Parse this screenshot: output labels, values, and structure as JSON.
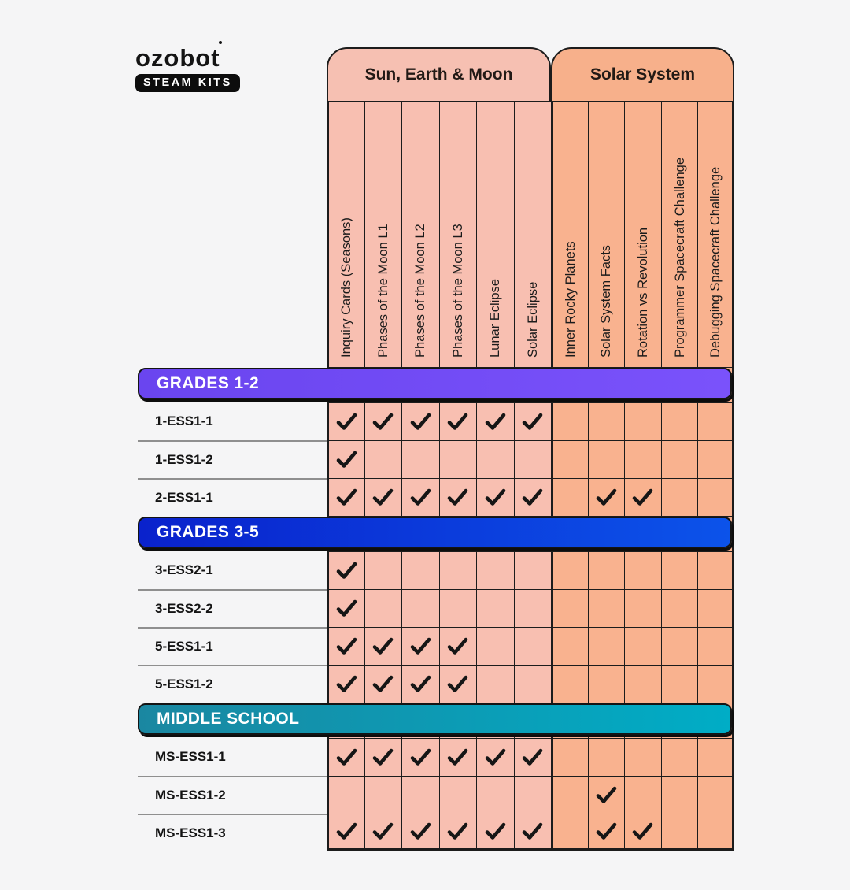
{
  "logo": {
    "brand": "ozobot",
    "badge": "STEAM KITS"
  },
  "colors": {
    "page_bg": "#f5f5f6",
    "pink": "#f8bfb1",
    "orange": "#f9b28f",
    "grid_line": "#1c1c1c",
    "label_separator": "#8f8f8f",
    "check": "#161616",
    "banner_text": "#ffffff"
  },
  "chart_data": {
    "type": "table",
    "column_groups": [
      {
        "label": "Sun, Earth & Moon",
        "header_bg": "#f6c0b2",
        "columns": [
          "Inquiry Cards (Seasons)",
          "Phases of the Moon L1",
          "Phases of the Moon L2",
          "Phases of the Moon L3",
          "Lunar Eclipse",
          "Solar Eclipse"
        ]
      },
      {
        "label": "Solar System",
        "header_bg": "#f7b08b",
        "columns": [
          "Inner Rocky Planets",
          "Solar System Facts",
          "Rotation vs Revolution",
          "Programmer Spacecraft Challenge",
          "Debugging Spacecraft Challenge"
        ]
      }
    ],
    "sections": [
      {
        "banner": "GRADES 1-2",
        "gradient": [
          "#6a45ef",
          "#7a52fb"
        ],
        "rows": [
          {
            "label": "1-ESS1-1",
            "checks": [
              1,
              1,
              1,
              1,
              1,
              1,
              0,
              0,
              0,
              0,
              0
            ]
          },
          {
            "label": "1-ESS1-2",
            "checks": [
              1,
              0,
              0,
              0,
              0,
              0,
              0,
              0,
              0,
              0,
              0
            ]
          },
          {
            "label": "2-ESS1-1",
            "checks": [
              1,
              1,
              1,
              1,
              1,
              1,
              0,
              1,
              1,
              0,
              0
            ]
          }
        ]
      },
      {
        "banner": "GRADES 3-5",
        "gradient": [
          "#0a22cc",
          "#0c53ea"
        ],
        "rows": [
          {
            "label": "3-ESS2-1",
            "checks": [
              1,
              0,
              0,
              0,
              0,
              0,
              0,
              0,
              0,
              0,
              0
            ]
          },
          {
            "label": "3-ESS2-2",
            "checks": [
              1,
              0,
              0,
              0,
              0,
              0,
              0,
              0,
              0,
              0,
              0
            ]
          },
          {
            "label": "5-ESS1-1",
            "checks": [
              1,
              1,
              1,
              1,
              0,
              0,
              0,
              0,
              0,
              0,
              0
            ]
          },
          {
            "label": "5-ESS1-2",
            "checks": [
              1,
              1,
              1,
              1,
              0,
              0,
              0,
              0,
              0,
              0,
              0
            ]
          }
        ]
      },
      {
        "banner": "MIDDLE SCHOOL",
        "gradient": [
          "#1a87a1",
          "#00adc6"
        ],
        "rows": [
          {
            "label": "MS-ESS1-1",
            "checks": [
              1,
              1,
              1,
              1,
              1,
              1,
              0,
              0,
              0,
              0,
              0
            ]
          },
          {
            "label": "MS-ESS1-2",
            "checks": [
              0,
              0,
              0,
              0,
              0,
              0,
              0,
              1,
              0,
              0,
              0
            ]
          },
          {
            "label": "MS-ESS1-3",
            "checks": [
              1,
              1,
              1,
              1,
              1,
              1,
              0,
              1,
              1,
              0,
              0
            ]
          }
        ]
      }
    ]
  }
}
